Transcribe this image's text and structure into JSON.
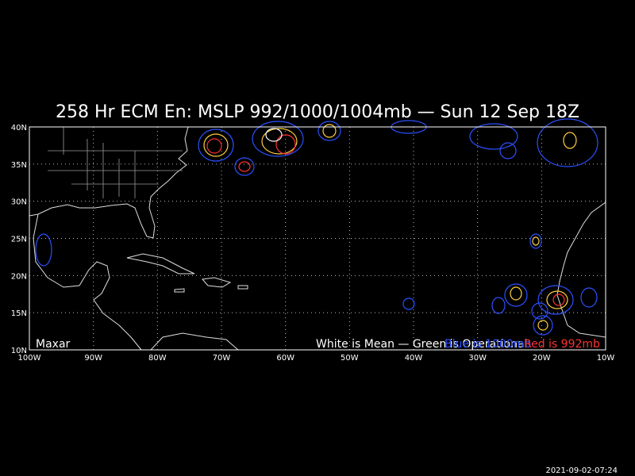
{
  "map": {
    "title": "258 Hr ECM En: MSLP 992/1000/1004mb — Sun 12 Sep 18Z",
    "credit": "Maxar",
    "legend_mean": "White is Mean — Green is Operational",
    "legend_blue": "Blue is 1000mb",
    "legend_red": "Red is 992mb",
    "lat_labels": [
      "40N",
      "35N",
      "30N",
      "25N",
      "20N",
      "15N",
      "10N"
    ],
    "lon_labels": [
      "100W",
      "90W",
      "80W",
      "70W",
      "60W",
      "50W",
      "40W",
      "30W",
      "20W",
      "10W"
    ],
    "timestamp": "2021-09-02-07:24"
  }
}
